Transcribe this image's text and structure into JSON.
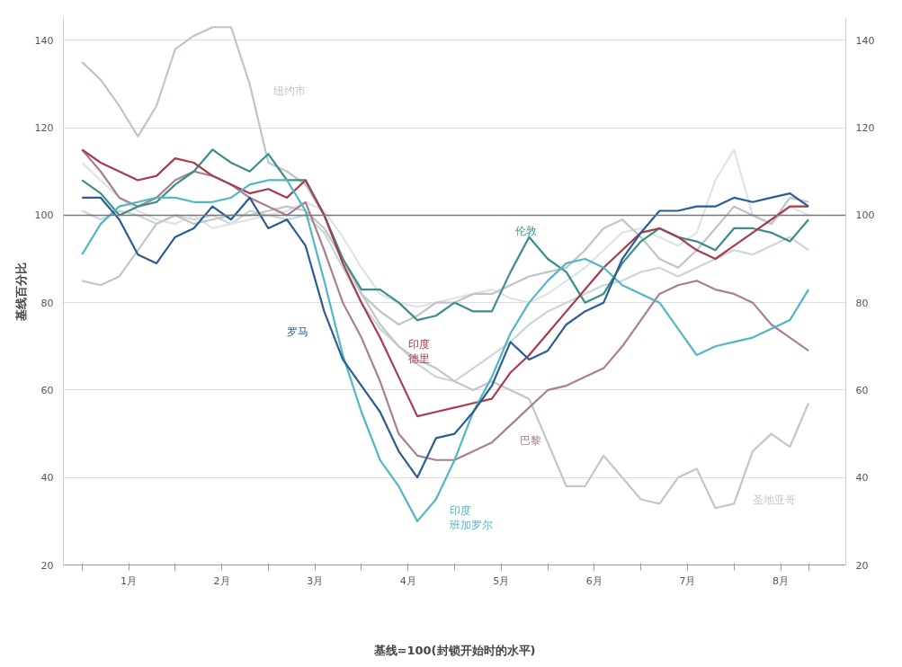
{
  "chart_data": {
    "type": "line",
    "xlabel": "基线=100(封锁开始时的水平)",
    "ylabel": "基线百分比",
    "x": [
      0,
      0.2,
      0.4,
      0.6,
      0.8,
      1.0,
      1.2,
      1.4,
      1.6,
      1.8,
      2.0,
      2.2,
      2.4,
      2.6,
      2.8,
      3.0,
      3.2,
      3.4,
      3.6,
      3.8,
      4.0,
      4.2,
      4.4,
      4.6,
      4.8,
      5.0,
      5.2,
      5.4,
      5.6,
      5.8,
      6.0,
      6.2,
      6.4,
      6.6,
      6.8,
      7.0,
      7.2,
      7.4,
      7.6,
      7.8
    ],
    "xlim": [
      -0.2,
      8.2
    ],
    "xticks": [
      {
        "value": 0,
        "label": null
      },
      {
        "value": 0.5,
        "label": "1月"
      },
      {
        "value": 1,
        "label": null
      },
      {
        "value": 1.5,
        "label": "2月"
      },
      {
        "value": 2,
        "label": null
      },
      {
        "value": 2.5,
        "label": "3月"
      },
      {
        "value": 3,
        "label": null
      },
      {
        "value": 3.5,
        "label": "4月"
      },
      {
        "value": 4,
        "label": null
      },
      {
        "value": 4.5,
        "label": "5月"
      },
      {
        "value": 5,
        "label": null
      },
      {
        "value": 5.5,
        "label": "6月"
      },
      {
        "value": 6,
        "label": null
      },
      {
        "value": 6.5,
        "label": "7月"
      },
      {
        "value": 7,
        "label": null
      },
      {
        "value": 7.5,
        "label": "8月"
      },
      {
        "value": 7.8,
        "label": null
      }
    ],
    "ylim": [
      20,
      145
    ],
    "yticks": [
      20,
      40,
      60,
      80,
      100,
      120,
      140
    ],
    "y2lim": [
      20,
      145
    ],
    "y2ticks": [
      20,
      40,
      60,
      80,
      100,
      120,
      140
    ],
    "grid": "y",
    "ref_lines": [
      {
        "axis": "y",
        "value": 100,
        "label": null,
        "color": "#777777"
      }
    ],
    "series": [
      {
        "color": "#c9d6dc",
        "values": [
          101,
          99,
          101,
          100,
          98,
          100,
          99,
          100,
          98,
          101,
          100,
          99,
          100,
          96,
          88,
          80,
          74,
          70,
          66,
          63,
          62,
          65,
          68,
          71,
          75,
          78,
          80,
          82,
          84,
          85,
          87,
          88,
          86,
          88,
          90,
          92,
          91,
          93,
          95,
          92
        ]
      },
      {
        "color": "#dde3e6",
        "values": [
          112,
          108,
          104,
          101,
          99,
          98,
          100,
          97,
          98,
          99,
          100,
          101,
          103,
          101,
          95,
          88,
          82,
          80,
          79,
          80,
          81,
          82,
          83,
          81,
          80,
          82,
          85,
          88,
          92,
          96,
          97,
          95,
          93,
          96,
          108,
          115,
          100,
          98,
          102,
          100
        ]
      },
      {
        "name": "纽约市",
        "color": "#bfc4c7",
        "values": [
          135,
          131,
          125,
          118,
          125,
          138,
          141,
          143,
          143,
          130,
          112,
          110,
          107,
          100,
          90,
          82,
          78,
          75,
          77,
          80,
          80,
          82,
          82,
          84,
          86,
          87,
          88,
          92,
          97,
          99,
          95,
          90,
          88,
          92,
          97,
          102,
          100,
          98,
          104,
          103
        ]
      },
      {
        "name": "圣地亚哥",
        "color": "#c2c6c9",
        "values": [
          85,
          84,
          86,
          92,
          98,
          100,
          98,
          99,
          100,
          100,
          101,
          102,
          101,
          97,
          90,
          82,
          75,
          70,
          67,
          65,
          62,
          60,
          62,
          60,
          58,
          48,
          38,
          38,
          45,
          40,
          35,
          34,
          40,
          42,
          33,
          34,
          46,
          50,
          47,
          57
        ]
      },
      {
        "name": "巴黎",
        "color": "#a8808f",
        "values": [
          115,
          110,
          104,
          102,
          104,
          108,
          110,
          109,
          107,
          104,
          102,
          100,
          103,
          92,
          80,
          72,
          62,
          50,
          45,
          44,
          44,
          46,
          48,
          52,
          56,
          60,
          61,
          63,
          65,
          70,
          76,
          82,
          84,
          85,
          83,
          82,
          80,
          75,
          72,
          69
        ]
      },
      {
        "name": "伦敦",
        "color": "#3a8f8a",
        "values": [
          108,
          105,
          100,
          102,
          103,
          107,
          110,
          115,
          112,
          110,
          114,
          108,
          108,
          100,
          90,
          83,
          83,
          80,
          76,
          77,
          80,
          78,
          78,
          87,
          95,
          90,
          87,
          80,
          82,
          89,
          94,
          97,
          95,
          94,
          92,
          97,
          97,
          96,
          94,
          99
        ]
      },
      {
        "name": "印度德里",
        "color": "#a83c4c",
        "values": [
          115,
          112,
          110,
          108,
          109,
          113,
          112,
          109,
          107,
          105,
          106,
          104,
          108,
          100,
          89,
          80,
          72,
          63,
          54,
          55,
          56,
          57,
          58,
          64,
          68,
          73,
          78,
          83,
          88,
          92,
          96,
          97,
          95,
          92,
          90,
          93,
          96,
          99,
          102,
          102
        ]
      },
      {
        "name": "印度班加罗尔",
        "color": "#4fb8c4",
        "values": [
          91,
          98,
          102,
          103,
          104,
          104,
          103,
          103,
          104,
          107,
          108,
          108,
          101,
          85,
          68,
          55,
          44,
          38,
          30,
          35,
          44,
          55,
          63,
          73,
          80,
          85,
          89,
          90,
          88,
          84,
          82,
          80,
          74,
          68,
          70,
          71,
          72,
          74,
          76,
          83
        ]
      },
      {
        "name": "罗马",
        "color": "#2b5d93",
        "values": [
          104,
          104,
          99,
          91,
          89,
          95,
          97,
          102,
          99,
          104,
          97,
          99,
          93,
          78,
          67,
          61,
          55,
          46,
          40,
          49,
          50,
          55,
          61,
          71,
          67,
          69,
          75,
          78,
          80,
          90,
          96,
          101,
          101,
          102,
          102,
          104,
          103,
          104,
          105,
          102
        ]
      }
    ]
  }
}
